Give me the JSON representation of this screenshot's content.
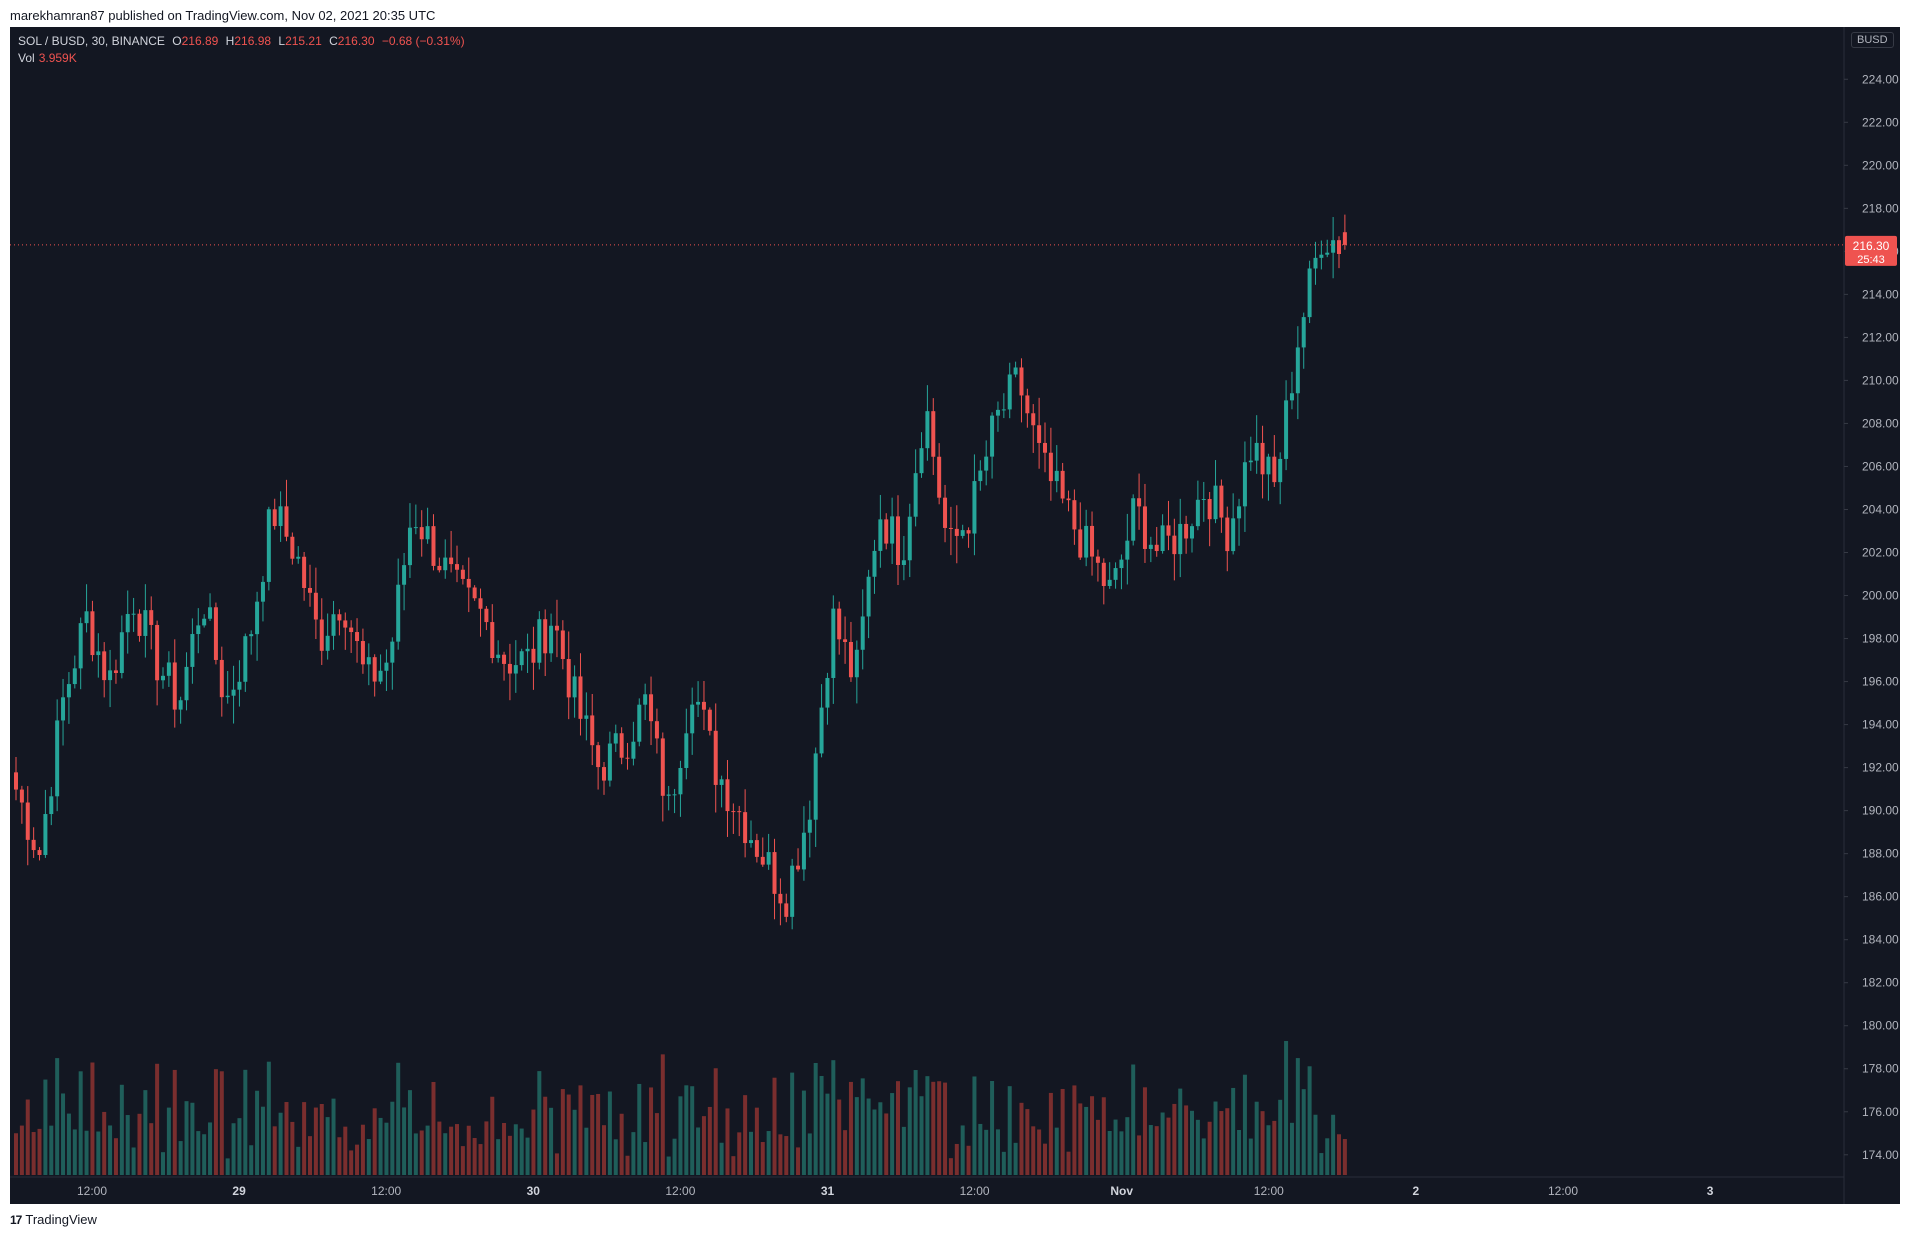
{
  "publisher": "marekhamran87 published on TradingView.com, Nov 02, 2021 20:35 UTC",
  "legend": {
    "symbol": "SOL / BUSD, 30, BINANCE",
    "open_label": "O",
    "open": "216.89",
    "high_label": "H",
    "high": "216.98",
    "low_label": "L",
    "low": "215.21",
    "close_label": "C",
    "close": "216.30",
    "change": "−0.68 (−0.31%)",
    "vol_label": "Vol",
    "vol": "3.959K"
  },
  "currency": "BUSD",
  "last_price": {
    "value": "216.30",
    "countdown": "25:43"
  },
  "footer": {
    "logo_text": "TradingView"
  },
  "colors": {
    "background": "#131722",
    "up": "#26a69a",
    "down": "#ef5350",
    "up_volume": "#1f5e5a",
    "down_volume": "#7a2e2e",
    "axis_text": "#b2b5be"
  },
  "chart_data": {
    "type": "candlestick",
    "interval": "30m",
    "y_axis": {
      "ticks": [
        "224.00",
        "222.00",
        "220.00",
        "218.00",
        "216.00",
        "214.00",
        "212.00",
        "210.00",
        "208.00",
        "206.00",
        "204.00",
        "202.00",
        "200.00",
        "198.00",
        "196.00",
        "194.00",
        "192.00",
        "190.00",
        "188.00",
        "186.00",
        "184.00",
        "182.00",
        "180.00",
        "178.00",
        "176.00",
        "174.00"
      ],
      "range": [
        173.2,
        225.5
      ]
    },
    "x_axis": {
      "ticks": [
        "12:00",
        "29",
        "12:00",
        "30",
        "12:00",
        "31",
        "12:00",
        "Nov",
        "12:00",
        "2",
        "12:00",
        "3"
      ],
      "ticks_bold": [
        false,
        true,
        false,
        true,
        false,
        true,
        false,
        true,
        false,
        true,
        false,
        true
      ]
    },
    "waypoints": [
      191,
      188,
      195,
      199,
      196,
      200,
      197,
      195,
      200,
      195,
      198,
      204,
      202,
      198,
      200,
      196,
      197,
      204,
      202,
      200,
      199,
      197,
      197,
      199,
      195,
      192,
      193,
      195,
      190,
      196,
      192,
      190,
      188,
      186,
      190,
      199,
      196,
      204,
      202,
      209,
      202,
      204,
      208,
      210,
      206,
      204,
      202,
      200,
      204,
      202,
      203,
      205,
      203,
      207,
      205,
      212,
      216.8,
      216.3
    ],
    "candle_count": 227,
    "volume_profile": "relative heights, largest at the 31 Oct 13:30 breakout"
  }
}
